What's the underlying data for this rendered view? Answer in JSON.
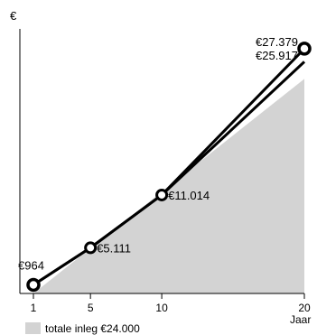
{
  "chart_data": {
    "type": "line",
    "ylabel": "€",
    "xlabel": "Jaar",
    "x_ticks": [
      "1",
      "5",
      "10",
      "20"
    ],
    "xlim": [
      1,
      20
    ],
    "ylim": [
      0,
      30500
    ],
    "grid": false,
    "area": {
      "name": "totale inleg €24.000",
      "x": [
        1,
        20
      ],
      "y": [
        0,
        24000
      ],
      "color": "#d3d3d3"
    },
    "series": [
      {
        "x": [
          1,
          5,
          10,
          20
        ],
        "y": [
          964,
          5111,
          11014,
          27379
        ],
        "color": "#000000",
        "labels": [
          "€964",
          "€5.111",
          "€11.014",
          "€27.379"
        ]
      },
      {
        "x": [
          1,
          5,
          10,
          20
        ],
        "y": [
          964,
          5111,
          11014,
          25917
        ],
        "color": "#000000",
        "end_label": "€25.917"
      }
    ],
    "legend": {
      "position": "bottom-left",
      "label": "totale inleg €24.000"
    }
  }
}
